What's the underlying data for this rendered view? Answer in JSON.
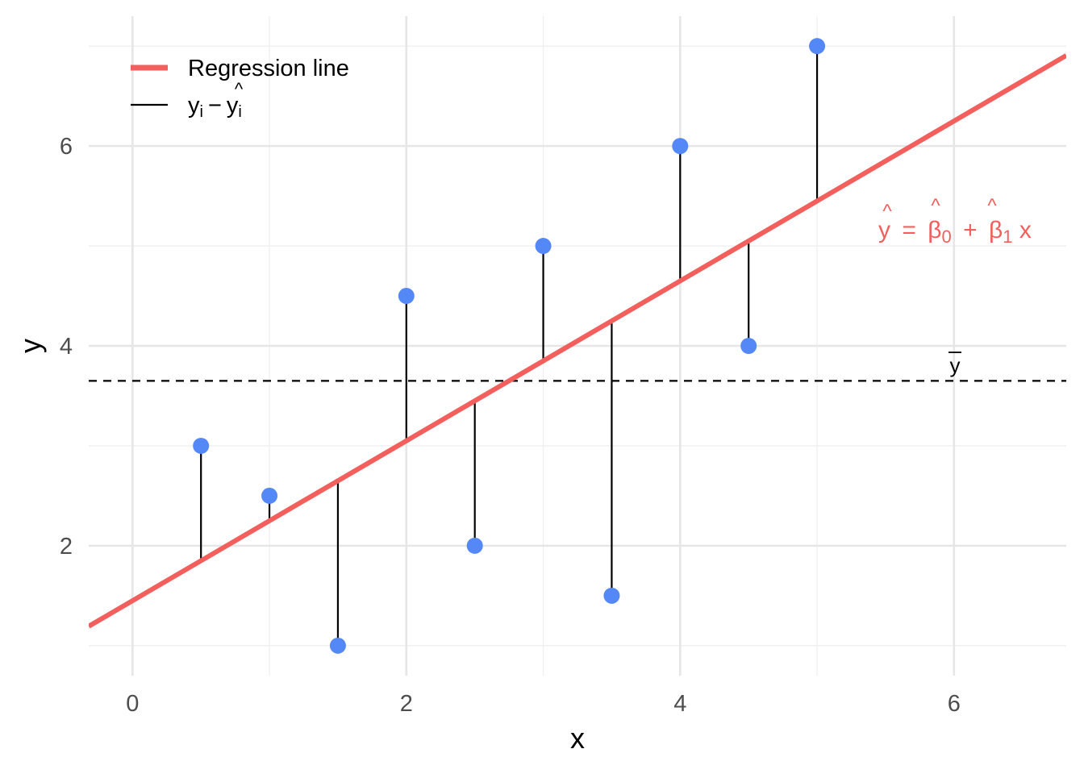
{
  "chart_data": {
    "type": "scatter",
    "xlabel": "x",
    "ylabel": "y",
    "xlim": [
      -0.32,
      6.82
    ],
    "ylim": [
      0.7,
      7.3
    ],
    "x_ticks": [
      0,
      2,
      4,
      6
    ],
    "y_ticks": [
      2,
      4,
      6
    ],
    "grid": true,
    "points": {
      "x": [
        0.5,
        1.0,
        1.5,
        2.0,
        2.5,
        3.0,
        3.5,
        4.0,
        4.5,
        5.0
      ],
      "y": [
        3.0,
        2.5,
        1.0,
        4.5,
        2.0,
        5.0,
        1.5,
        6.0,
        4.0,
        7.0
      ]
    },
    "regression": {
      "intercept": 1.45,
      "slope": 0.8,
      "name": "Regression line"
    },
    "mean_y": 3.65,
    "mean_label": "y",
    "equation": {
      "lhs": "y",
      "eq": "=",
      "b0": "β",
      "b0_sub": "0",
      "plus": "+",
      "b1": "β",
      "b1_sub": "1",
      "x": "x",
      "hat": "^"
    },
    "legend": {
      "position": "top-left",
      "items": [
        {
          "label": "Regression line",
          "color": "#f25f5c"
        },
        {
          "label_base": "y",
          "label_sub": "i",
          "label_minus": "−",
          "label_hat_base": "y",
          "label_hat": "^",
          "label_hat_sub": "i",
          "color": "#000000"
        }
      ]
    },
    "colors": {
      "points": "#5588f7",
      "regression": "#f25f5c",
      "residual": "#000000",
      "mean_line": "#000000",
      "equation": "#f25f5c"
    }
  }
}
